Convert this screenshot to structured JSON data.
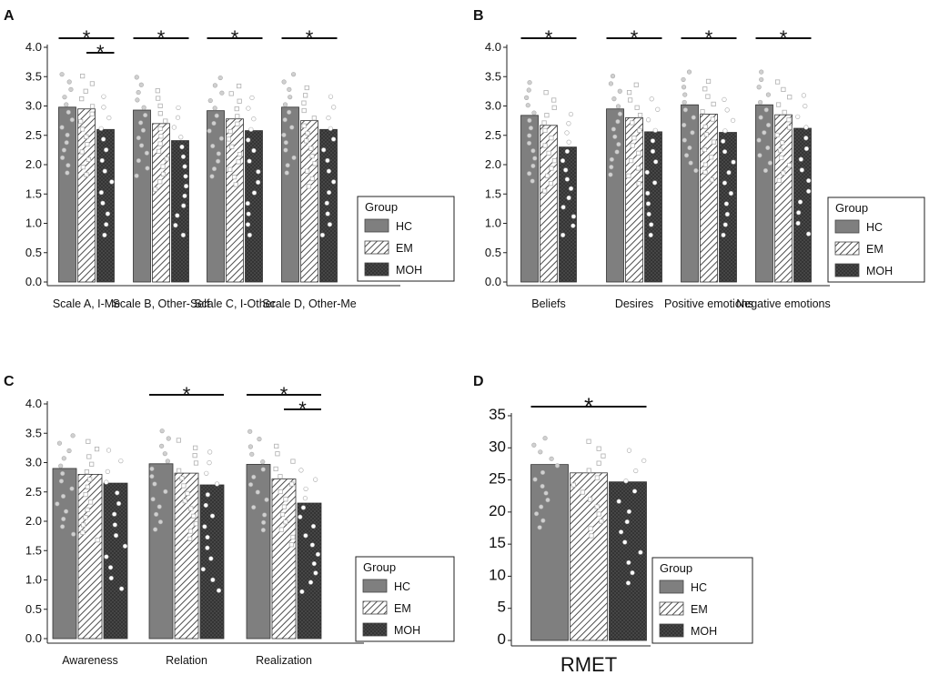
{
  "chart_data": [
    {
      "panel": "A",
      "type": "bar",
      "categories": [
        "Scale A, I-Me",
        "Scale B, Other-Self",
        "Scale C, I-Other",
        "Scale D, Other-Me"
      ],
      "series": [
        {
          "name": "HC",
          "values": [
            2.98,
            2.93,
            2.92,
            2.98
          ]
        },
        {
          "name": "EM",
          "values": [
            2.95,
            2.7,
            2.78,
            2.75
          ]
        },
        {
          "name": "MOH",
          "values": [
            2.6,
            2.41,
            2.58,
            2.6
          ]
        }
      ],
      "ylim": [
        0.0,
        4.0
      ],
      "yticks": [
        "0.0",
        "0.5",
        "1.0",
        "1.5",
        "2.0",
        "2.5",
        "3.0",
        "3.5",
        "4.0"
      ],
      "significance": [
        {
          "from": 0,
          "to": 2,
          "label": "*",
          "category": 0,
          "level": 0
        },
        {
          "from": 1,
          "to": 2,
          "label": "*",
          "category": 0,
          "level": 1
        },
        {
          "from": 0,
          "to": 2,
          "label": "*",
          "category": 1,
          "level": 0
        },
        {
          "from": 0,
          "to": 2,
          "label": "*",
          "category": 2,
          "level": 0
        },
        {
          "from": 0,
          "to": 2,
          "label": "*",
          "category": 3,
          "level": 0
        }
      ]
    },
    {
      "panel": "B",
      "type": "bar",
      "categories": [
        "Beliefs",
        "Desires",
        "Positive emotions",
        "Negative emotions"
      ],
      "series": [
        {
          "name": "HC",
          "values": [
            2.84,
            2.95,
            3.02,
            3.02
          ]
        },
        {
          "name": "EM",
          "values": [
            2.67,
            2.8,
            2.86,
            2.85
          ]
        },
        {
          "name": "MOH",
          "values": [
            2.3,
            2.56,
            2.55,
            2.62
          ]
        }
      ],
      "ylim": [
        0.0,
        4.0
      ],
      "yticks": [
        "0.0",
        "0.5",
        "1.0",
        "1.5",
        "2.0",
        "2.5",
        "3.0",
        "3.5",
        "4.0"
      ],
      "significance": [
        {
          "from": 0,
          "to": 2,
          "label": "*",
          "category": 0,
          "level": 0
        },
        {
          "from": 0,
          "to": 2,
          "label": "*",
          "category": 1,
          "level": 0
        },
        {
          "from": 0,
          "to": 2,
          "label": "*",
          "category": 2,
          "level": 0
        },
        {
          "from": 0,
          "to": 2,
          "label": "*",
          "category": 3,
          "level": 0
        }
      ]
    },
    {
      "panel": "C",
      "type": "bar",
      "categories": [
        "Awareness",
        "Relation",
        "Realization"
      ],
      "series": [
        {
          "name": "HC",
          "values": [
            2.9,
            2.98,
            2.97
          ]
        },
        {
          "name": "EM",
          "values": [
            2.8,
            2.82,
            2.72
          ]
        },
        {
          "name": "MOH",
          "values": [
            2.65,
            2.62,
            2.31
          ]
        }
      ],
      "ylim": [
        0.0,
        4.0
      ],
      "yticks": [
        "0.0",
        "0.5",
        "1.0",
        "1.5",
        "2.0",
        "2.5",
        "3.0",
        "3.5",
        "4.0"
      ],
      "significance": [
        {
          "from": 0,
          "to": 2,
          "label": "*",
          "category": 1,
          "level": 0
        },
        {
          "from": 0,
          "to": 2,
          "label": "*",
          "category": 2,
          "level": 0
        },
        {
          "from": 1,
          "to": 2,
          "label": "*",
          "category": 2,
          "level": 1
        }
      ]
    },
    {
      "panel": "D",
      "type": "bar",
      "categories": [
        "RMET"
      ],
      "series": [
        {
          "name": "HC",
          "values": [
            27.4
          ]
        },
        {
          "name": "EM",
          "values": [
            26.1
          ]
        },
        {
          "name": "MOH",
          "values": [
            24.7
          ]
        }
      ],
      "ylim": [
        0,
        35
      ],
      "yticks": [
        "0",
        "5",
        "10",
        "15",
        "20",
        "25",
        "30",
        "35"
      ],
      "significance": [
        {
          "from": 0,
          "to": 2,
          "label": "*",
          "category": 0,
          "level": 0
        }
      ]
    }
  ],
  "legend": {
    "title": "Group",
    "items": [
      "HC",
      "EM",
      "MOH"
    ]
  },
  "colors": {
    "HC": "#7f7f7f",
    "EM_stripe": "#4d4d4d",
    "MOH": "#2e2e2e",
    "dots": "#c8c8c8"
  }
}
